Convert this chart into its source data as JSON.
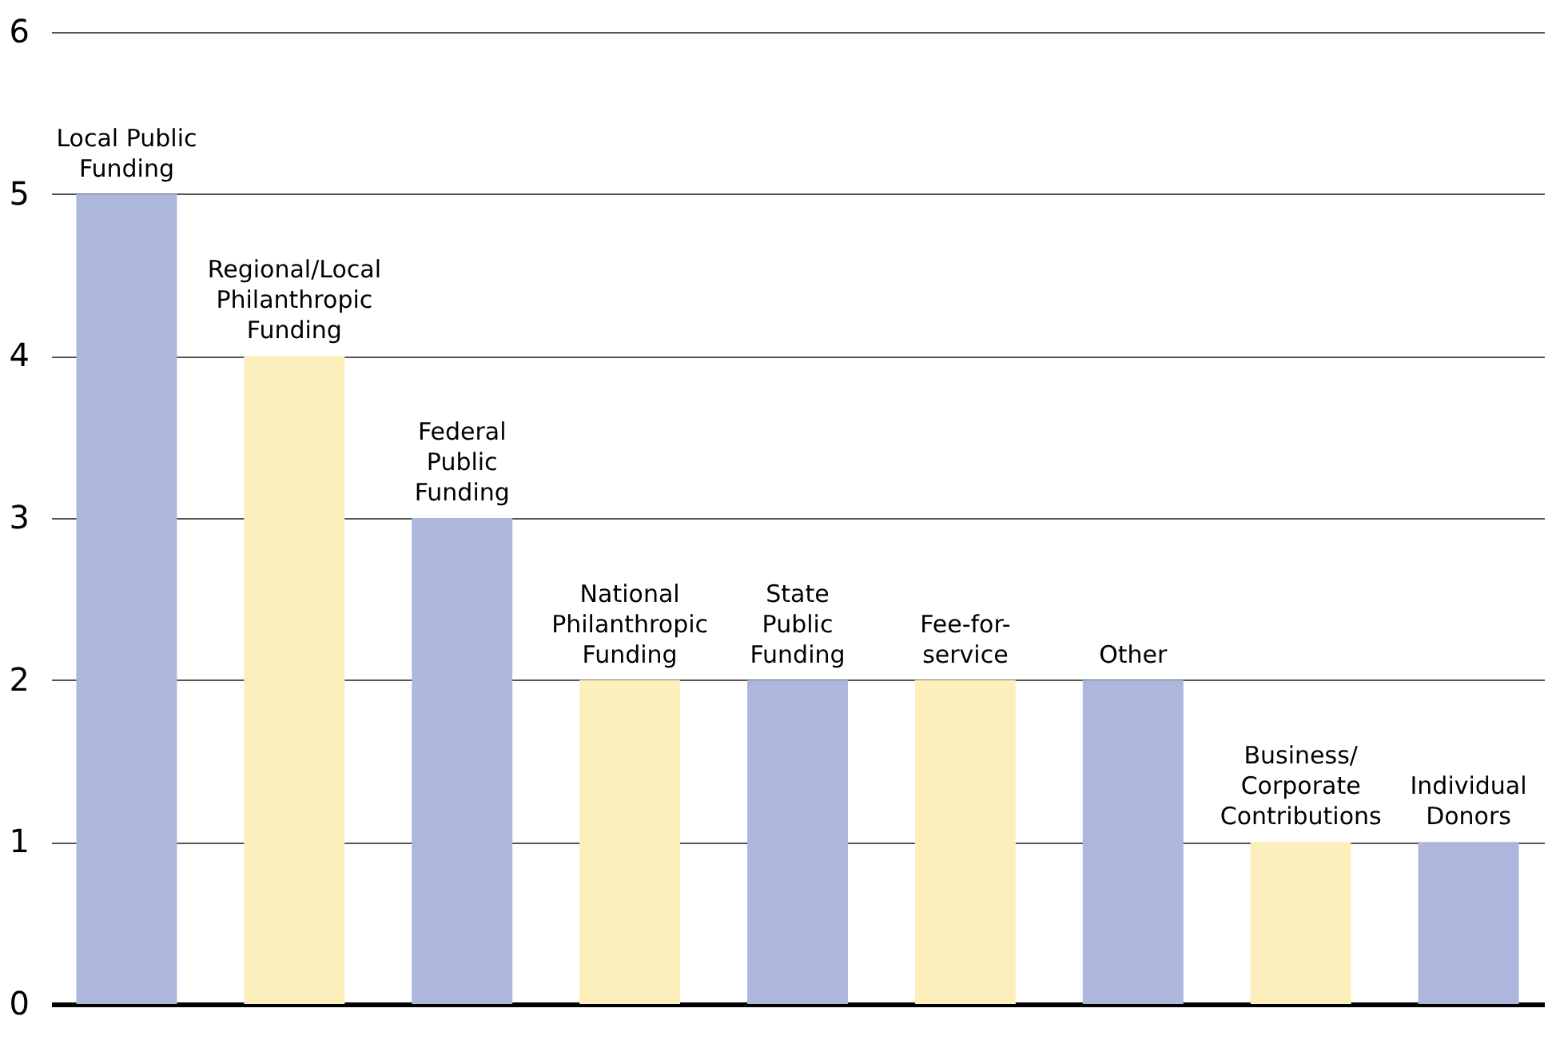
{
  "chart_data": {
    "type": "bar",
    "categories": [
      "Local Public\nFunding",
      "Regional/Local\nPhilanthropic\nFunding",
      "Federal\nPublic\nFunding",
      "National\nPhilanthropic\nFunding",
      "State\nPublic\nFunding",
      "Fee-for-\nservice",
      "Other",
      "Business/\nCorporate\nContributions",
      "Individual\nDonors"
    ],
    "values": [
      5,
      4,
      3,
      2,
      2,
      2,
      2,
      1,
      1
    ],
    "colors": [
      "#adb7dd",
      "#fcefbb",
      "#adb7dd",
      "#fcefbb",
      "#adb7dd",
      "#fcefbb",
      "#adb7dd",
      "#fcefbb",
      "#adb7dd"
    ],
    "ylim": [
      0,
      6
    ],
    "yticks": [
      0,
      1,
      2,
      3,
      4,
      5,
      6
    ],
    "grid": "y",
    "tick_labels": "y"
  }
}
